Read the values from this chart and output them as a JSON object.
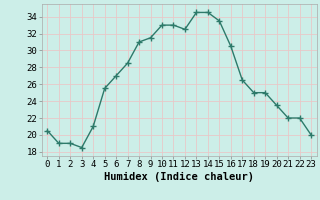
{
  "x": [
    0,
    1,
    2,
    3,
    4,
    5,
    6,
    7,
    8,
    9,
    10,
    11,
    12,
    13,
    14,
    15,
    16,
    17,
    18,
    19,
    20,
    21,
    22,
    23
  ],
  "y": [
    20.5,
    19.0,
    19.0,
    18.5,
    21.0,
    25.5,
    27.0,
    28.5,
    31.0,
    31.5,
    33.0,
    33.0,
    32.5,
    34.5,
    34.5,
    33.5,
    30.5,
    26.5,
    25.0,
    25.0,
    23.5,
    22.0,
    22.0,
    20.0
  ],
  "line_color": "#2d7a6a",
  "marker": "P",
  "marker_size": 3,
  "bg_color": "#cceee8",
  "grid_color": "#e8c8c8",
  "xlabel": "Humidex (Indice chaleur)",
  "xlim": [
    -0.5,
    23.5
  ],
  "ylim": [
    17.5,
    35.5
  ],
  "yticks": [
    18,
    20,
    22,
    24,
    26,
    28,
    30,
    32,
    34
  ],
  "xticks": [
    0,
    1,
    2,
    3,
    4,
    5,
    6,
    7,
    8,
    9,
    10,
    11,
    12,
    13,
    14,
    15,
    16,
    17,
    18,
    19,
    20,
    21,
    22,
    23
  ],
  "tick_fontsize": 6.5,
  "xlabel_fontsize": 7.5,
  "line_width": 1.0
}
